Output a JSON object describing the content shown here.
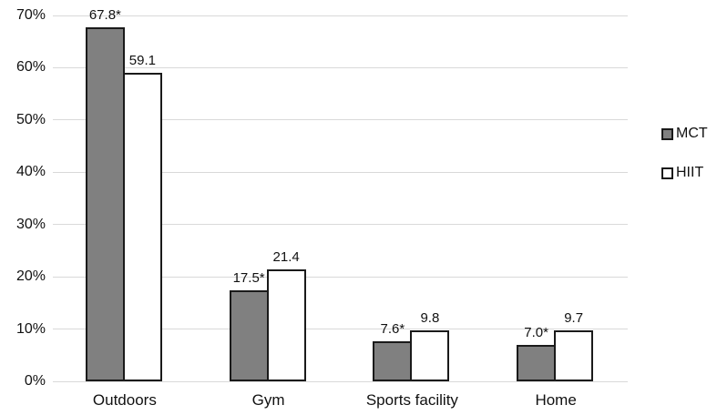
{
  "chart_data": {
    "type": "bar",
    "categories": [
      "Outdoors",
      "Gym",
      "Sports facility",
      "Home"
    ],
    "series": [
      {
        "name": "MCT",
        "values": [
          67.8,
          17.5,
          7.6,
          7.0
        ],
        "labels": [
          "67.8*",
          "17.5*",
          "7.6*",
          "7.0*"
        ],
        "fill": "#808080"
      },
      {
        "name": "HIIT",
        "values": [
          59.1,
          21.4,
          9.8,
          9.7
        ],
        "labels": [
          "59.1",
          "21.4",
          "9.8",
          "9.7"
        ],
        "fill": "#ffffff"
      }
    ],
    "title": "",
    "xlabel": "",
    "ylabel": "",
    "ylim": [
      0,
      70
    ],
    "ytick_step": 10,
    "ytick_labels": [
      "0%",
      "10%",
      "20%",
      "30%",
      "40%",
      "50%",
      "60%",
      "70%"
    ],
    "grid": true,
    "legend_position": "right",
    "colors": {
      "bar_border": "#1a1a1a",
      "gridline": "#d9d9d9",
      "text": "#111111",
      "mct_fill": "#808080",
      "hiit_fill": "#ffffff",
      "background": "#ffffff"
    }
  },
  "legend": {
    "items": [
      {
        "label": "MCT"
      },
      {
        "label": "HIIT"
      }
    ]
  }
}
